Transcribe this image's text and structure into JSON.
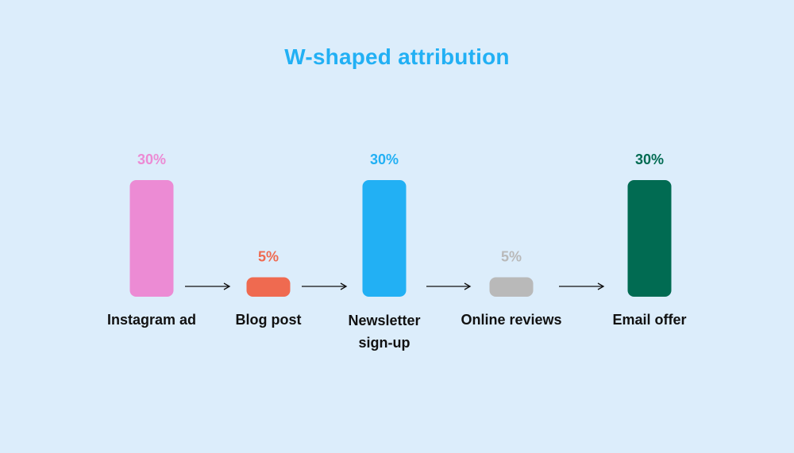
{
  "chart_data": {
    "type": "bar",
    "title": "W-shaped attribution",
    "categories": [
      "Instagram ad",
      "Blog post",
      "Newsletter sign-up",
      "Online reviews",
      "Email offer"
    ],
    "category_lines": [
      [
        "Instagram ad"
      ],
      [
        "Blog post"
      ],
      [
        "Newsletter",
        "sign-up"
      ],
      [
        "Online reviews"
      ],
      [
        "Email offer"
      ]
    ],
    "values": [
      30,
      5,
      30,
      5,
      30
    ],
    "value_labels": [
      "30%",
      "5%",
      "30%",
      "5%",
      "30%"
    ],
    "colors": [
      "#ec8bd4",
      "#ef6a50",
      "#22b0f4",
      "#b9b9b9",
      "#016b52"
    ],
    "ylim": [
      0,
      30
    ],
    "xlabel": "",
    "ylabel": "",
    "grid": false,
    "connectors": "arrows between bars"
  }
}
